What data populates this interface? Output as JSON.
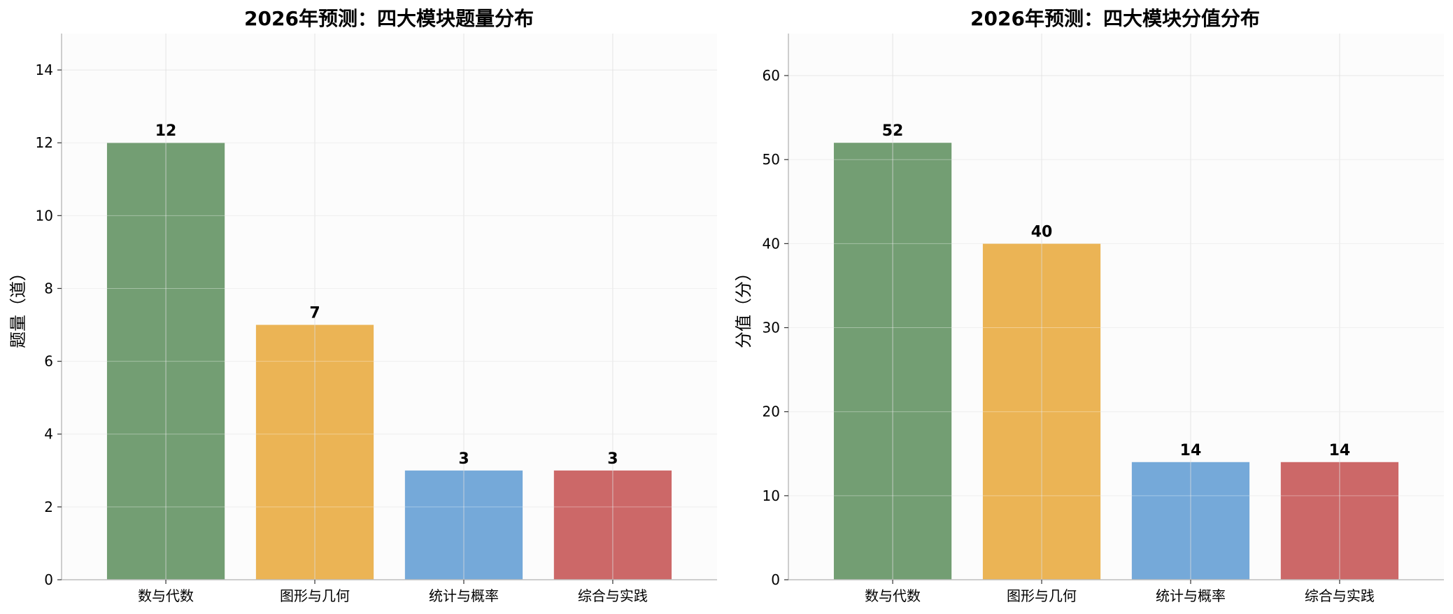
{
  "chart_data": [
    {
      "type": "bar",
      "title": "2026年预测：四大模块题量分布",
      "xlabel": "",
      "ylabel": "题量（道）",
      "categories": [
        "数与代数",
        "图形与几何",
        "统计与概率",
        "综合与实践"
      ],
      "values": [
        12,
        7,
        3,
        3
      ],
      "value_labels": [
        "12",
        "7",
        "3",
        "3"
      ],
      "colors": [
        "#739e73",
        "#ebb455",
        "#75a9d9",
        "#cc6868"
      ],
      "ylim": [
        0,
        15
      ],
      "yticks": [
        0,
        2,
        4,
        6,
        8,
        10,
        12,
        14
      ],
      "grid": true,
      "legend": "none"
    },
    {
      "type": "bar",
      "title": "2026年预测：四大模块分值分布",
      "xlabel": "",
      "ylabel": "分值（分）",
      "categories": [
        "数与代数",
        "图形与几何",
        "统计与概率",
        "综合与实践"
      ],
      "values": [
        52,
        40,
        14,
        14
      ],
      "value_labels": [
        "52",
        "40",
        "14",
        "14"
      ],
      "colors": [
        "#739e73",
        "#ebb455",
        "#75a9d9",
        "#cc6868"
      ],
      "ylim": [
        0,
        65
      ],
      "yticks": [
        0,
        10,
        20,
        30,
        40,
        50,
        60
      ],
      "grid": true,
      "legend": "none"
    }
  ]
}
